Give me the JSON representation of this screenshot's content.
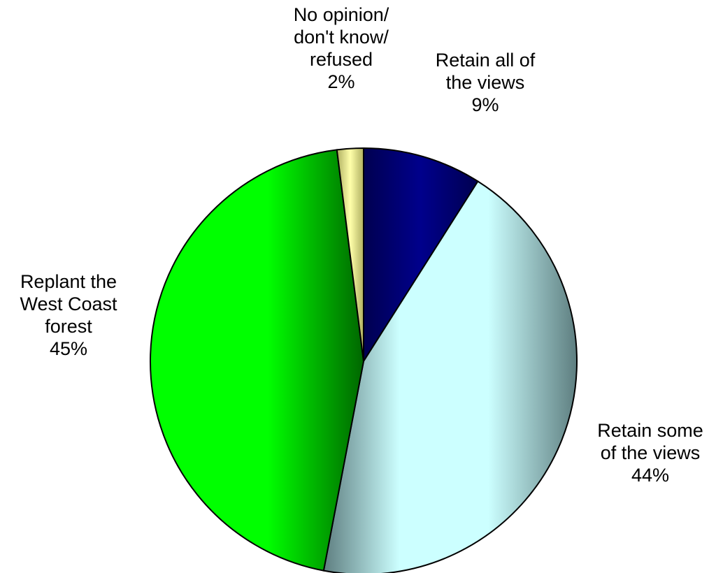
{
  "chart_data": {
    "type": "pie",
    "title": "",
    "start": "top, clockwise",
    "slices": [
      {
        "label_lines": [
          "Retain all of",
          "the views"
        ],
        "pct_label": "9%",
        "value": 9,
        "color": "#000080",
        "gradient": [
          "#000050",
          "#00008C"
        ]
      },
      {
        "label_lines": [
          "Retain some",
          "of the views"
        ],
        "pct_label": "44%",
        "value": 44,
        "color": "#CCFFFF",
        "gradient": [
          "#5E7E80",
          "#CCFFFF"
        ]
      },
      {
        "label_lines": [
          "Replant the",
          "West Coast",
          "forest"
        ],
        "pct_label": "45%",
        "value": 45,
        "color": "#00FF00",
        "gradient": [
          "#006600",
          "#00FF00"
        ]
      },
      {
        "label_lines": [
          "No opinion/",
          "don't know/",
          "refused"
        ],
        "pct_label": "2%",
        "value": 2,
        "color": "#FFFF99",
        "gradient": [
          "#AFAF60",
          "#FFFFAA"
        ]
      }
    ]
  }
}
